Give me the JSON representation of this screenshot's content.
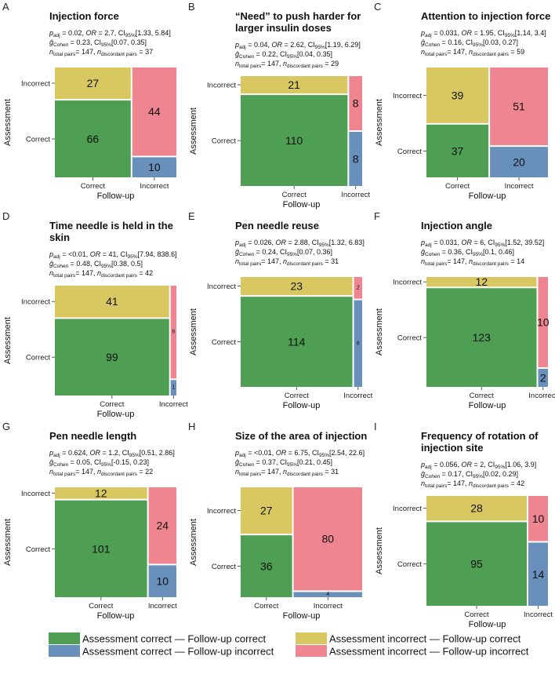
{
  "colors": {
    "green": "#4e9e53",
    "blue": "#6890bb",
    "yellow": "#d9c861",
    "pink": "#ee8591"
  },
  "legend": [
    {
      "key": "green",
      "label": "Assessment correct — Follow-up correct"
    },
    {
      "key": "blue",
      "label": "Assessment correct — Follow-up incorrect"
    },
    {
      "key": "yellow",
      "label": "Assessment incorrect — Follow-up correct"
    },
    {
      "key": "pink",
      "label": "Assessment incorrect — Follow-up incorrect"
    }
  ],
  "axes": {
    "ylabel": "Assessment",
    "xlabel": "Follow-up",
    "ycats": [
      "Incorrect",
      "Correct"
    ],
    "xcats": [
      "Correct",
      "Incorrect"
    ]
  },
  "chart_data": [
    {
      "type": "mosaic",
      "letter": "A",
      "title": [
        "Injection force"
      ],
      "stats": {
        "p": "0.02",
        "OR": "2.7",
        "ci": "[1.33, 5.84]",
        "g": "0.23",
        "gci": "[0.07, 0.35]",
        "ntotal": "147",
        "ndisc": "37"
      },
      "cells": {
        "cc": 66,
        "ci": 10,
        "ic": 27,
        "ii": 44
      }
    },
    {
      "type": "mosaic",
      "letter": "B",
      "title": [
        "“Need” to push harder for",
        "larger insulin doses"
      ],
      "stats": {
        "p": "0.04",
        "OR": "2.62",
        "ci": "[1.19, 6.29]",
        "g": "0.22",
        "gci": "[0.04, 0.35]",
        "ntotal": "147",
        "ndisc": "29"
      },
      "cells": {
        "cc": 110,
        "ci": 8,
        "ic": 21,
        "ii": 8
      }
    },
    {
      "type": "mosaic",
      "letter": "C",
      "title": [
        "Attention to injection force"
      ],
      "stats": {
        "p": "0.031",
        "OR": "1.95",
        "ci": "[1.14, 3.4]",
        "g": "0.16",
        "gci": "[0.03, 0.27]",
        "ntotal": "147",
        "ndisc": "59"
      },
      "cells": {
        "cc": 37,
        "ci": 20,
        "ic": 39,
        "ii": 51
      }
    },
    {
      "type": "mosaic",
      "letter": "D",
      "title": [
        "Time needle is held in the",
        "skin"
      ],
      "stats": {
        "p": "<0.01",
        "OR": "41",
        "ci": "[7.94, 838.6]",
        "g": "0.48",
        "gci": "[0.38, 0.5]",
        "ntotal": "147",
        "ndisc": "42"
      },
      "cells": {
        "cc": 99,
        "ci": 1,
        "ic": 41,
        "ii": 6
      }
    },
    {
      "type": "mosaic",
      "letter": "E",
      "title": [
        "Pen needle reuse"
      ],
      "stats": {
        "p": "0.026",
        "OR": "2.88",
        "ci": "[1.32, 6.83]",
        "g": "0.24",
        "gci": "[0.07, 0.36]",
        "ntotal": "147",
        "ndisc": "31"
      },
      "cells": {
        "cc": 114,
        "ci": 8,
        "ic": 23,
        "ii": 2
      }
    },
    {
      "type": "mosaic",
      "letter": "F",
      "title": [
        "Injection angle"
      ],
      "stats": {
        "p": "0.031",
        "OR": "6",
        "ci": "[1.52, 39.52]",
        "g": "0.36",
        "gci": "[0.1, 0.46]",
        "ntotal": "147",
        "ndisc": "14"
      },
      "cells": {
        "cc": 123,
        "ci": 2,
        "ic": 12,
        "ii": 10
      }
    },
    {
      "type": "mosaic",
      "letter": "G",
      "title": [
        "Pen needle length"
      ],
      "stats": {
        "p": "0.624",
        "OR": "1.2",
        "ci": "[0.51, 2.86]",
        "g": "0.05",
        "gci": "[-0.15, 0.23]",
        "ntotal": "147",
        "ndisc": "22"
      },
      "cells": {
        "cc": 101,
        "ci": 10,
        "ic": 12,
        "ii": 24
      }
    },
    {
      "type": "mosaic",
      "letter": "H",
      "title": [
        "Size of the area of injection"
      ],
      "stats": {
        "p": "<0.01",
        "OR": "6.75",
        "ci": "[2.54, 22.6]",
        "g": "0.37",
        "gci": "[0.21, 0.45]",
        "ntotal": "147",
        "ndisc": "31"
      },
      "cells": {
        "cc": 36,
        "ci": 4,
        "ic": 27,
        "ii": 80
      }
    },
    {
      "type": "mosaic",
      "letter": "I",
      "title": [
        "Frequency of rotation of",
        "injection site"
      ],
      "stats": {
        "p": "0.056",
        "OR": "2",
        "ci": "[1.06, 3.9]",
        "g": "0.17",
        "gci": "[0.02, 0.29]",
        "ntotal": "147",
        "ndisc": "42"
      },
      "cells": {
        "cc": 95,
        "ci": 14,
        "ic": 28,
        "ii": 10
      }
    }
  ]
}
